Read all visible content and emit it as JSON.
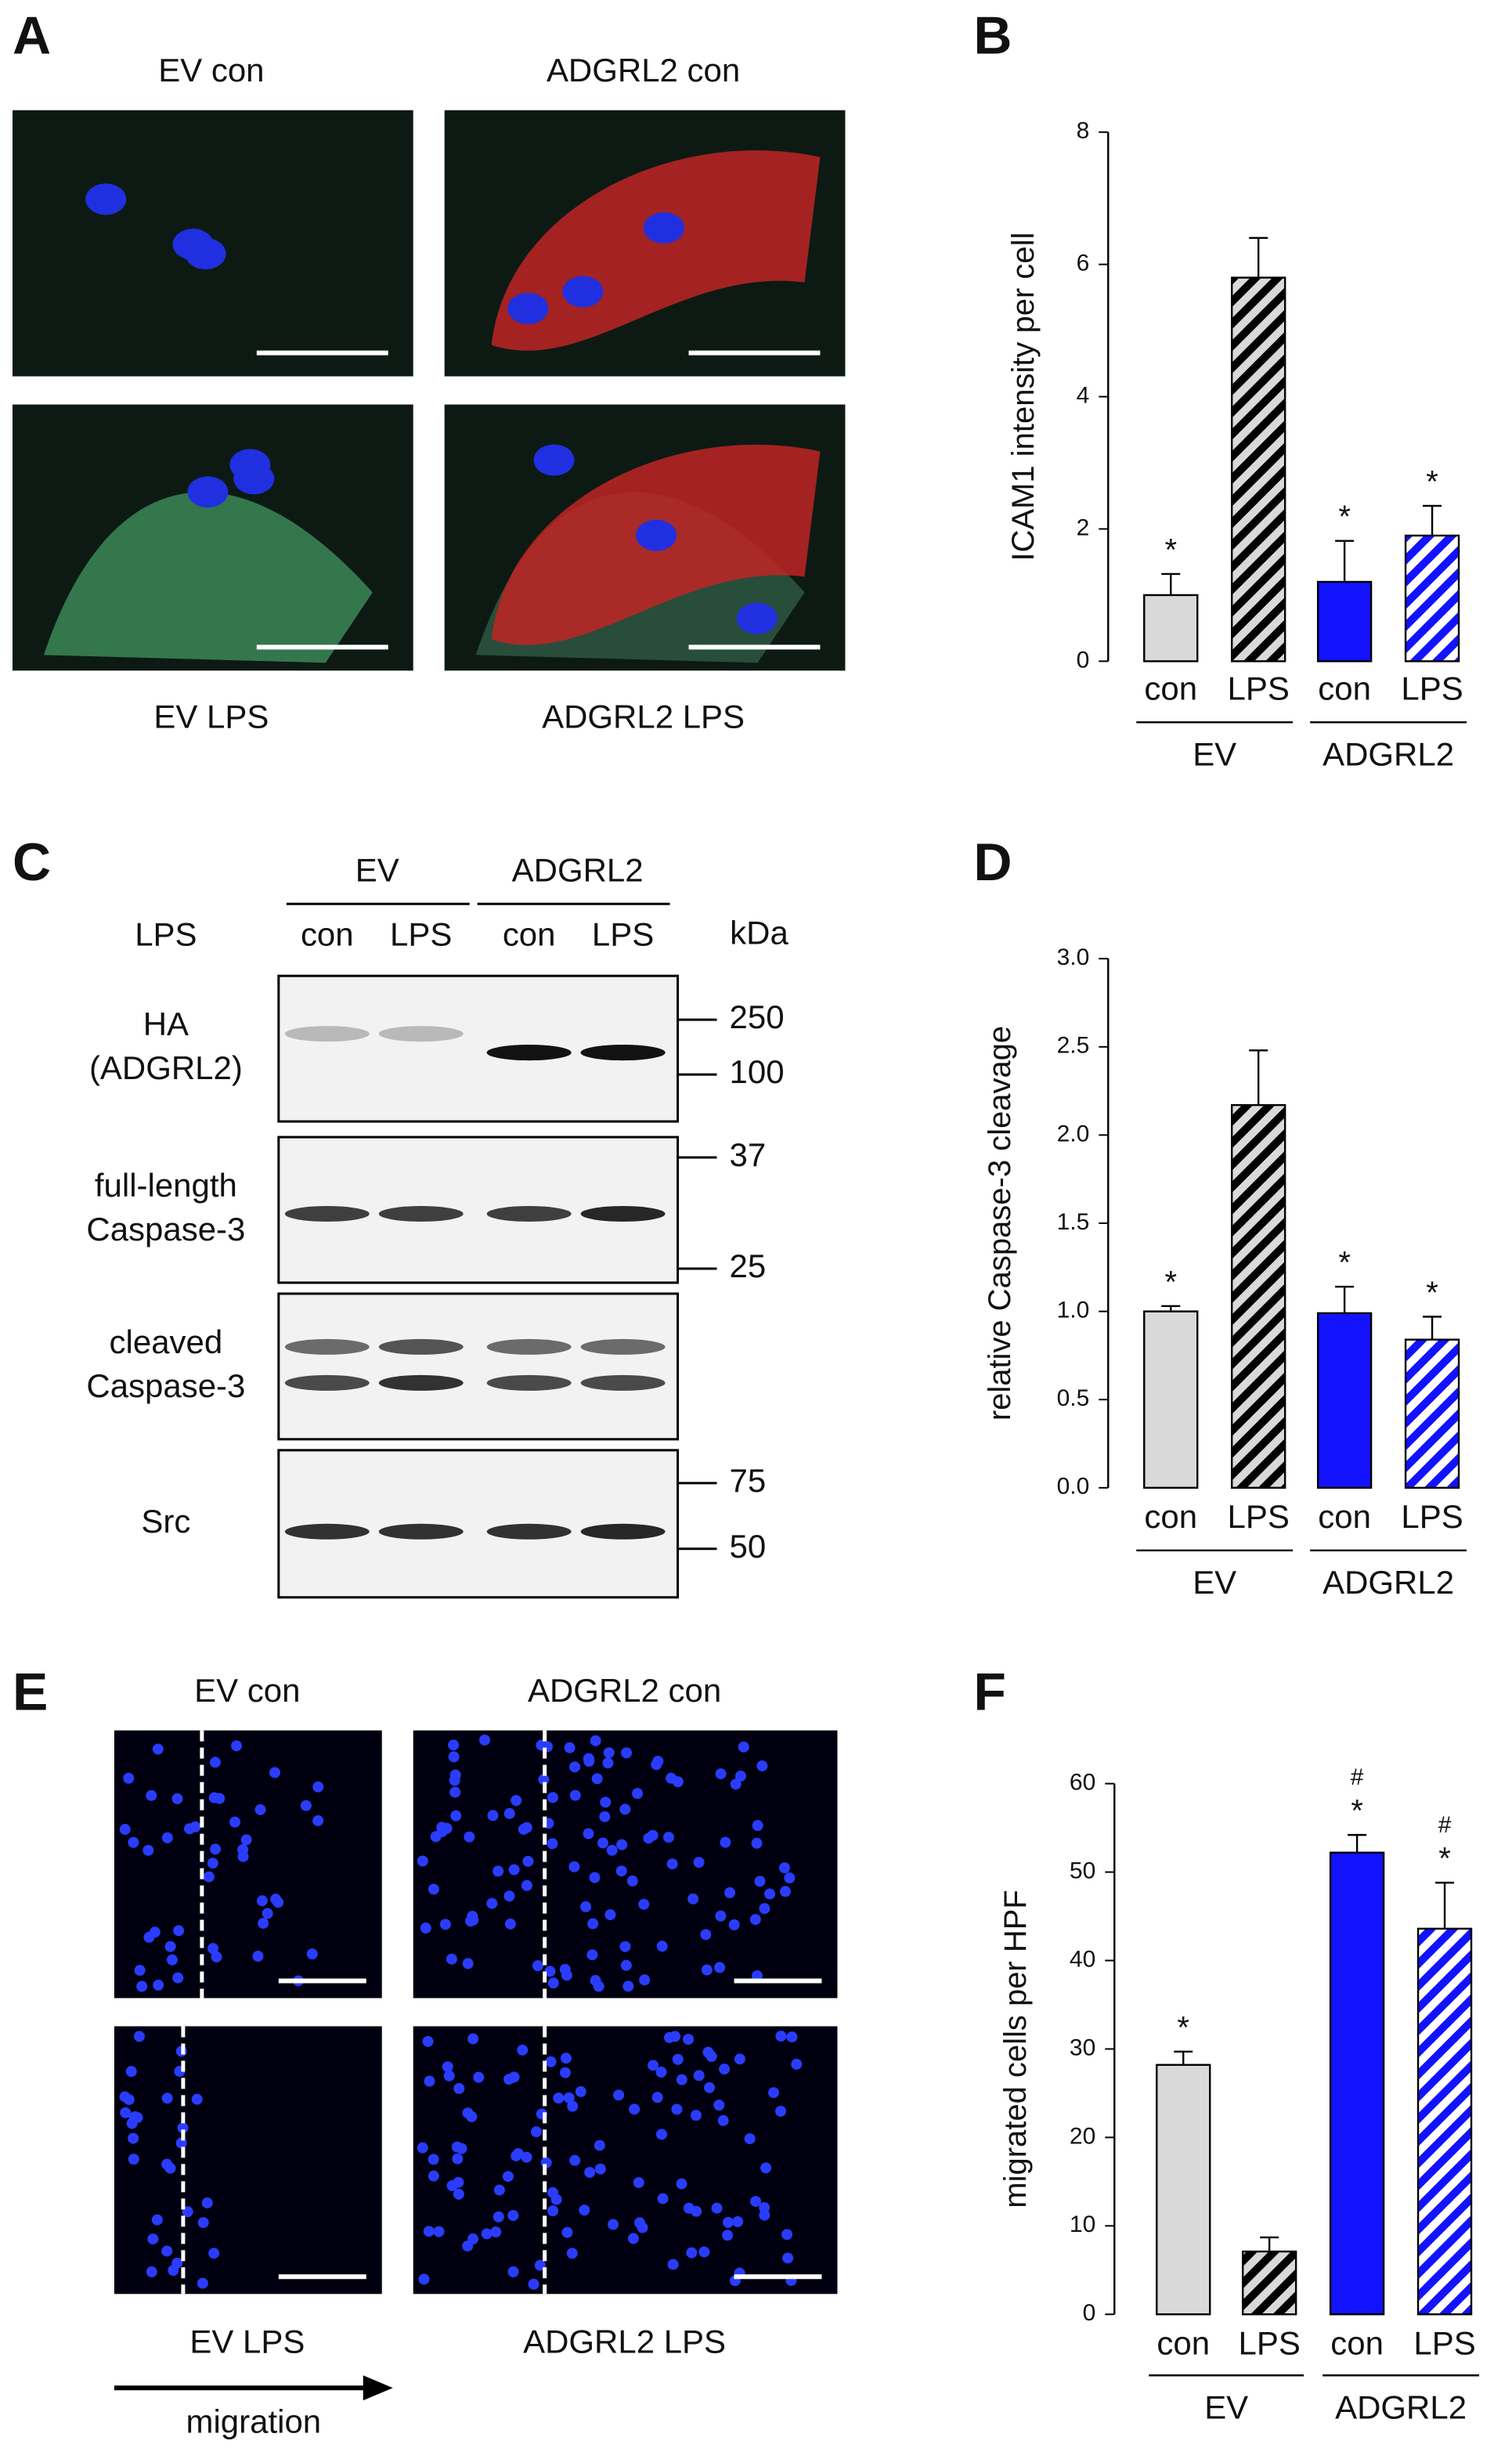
{
  "panel_labels": [
    "A",
    "B",
    "C",
    "D",
    "E",
    "F"
  ],
  "panel_a": {
    "images": [
      "EV con",
      "ADGRL2 con",
      "EV LPS",
      "ADGRL2 LPS"
    ]
  },
  "panel_c": {
    "groups": [
      "EV",
      "ADGRL2"
    ],
    "row_label": "LPS",
    "lanes": [
      "con",
      "LPS",
      "con",
      "LPS"
    ],
    "unit": "kDa",
    "blots": [
      {
        "label": [
          "HA",
          "(ADGRL2)"
        ],
        "markers": [
          250,
          100
        ]
      },
      {
        "label": [
          "full-length",
          "Caspase-3"
        ],
        "markers": [
          37,
          25
        ]
      },
      {
        "label": [
          "cleaved",
          "Caspase-3"
        ]
      },
      {
        "label": [
          "Src"
        ],
        "markers": [
          75,
          50
        ]
      }
    ]
  },
  "panel_e": {
    "images": [
      "EV con",
      "ADGRL2 con",
      "EV LPS",
      "ADGRL2 LPS"
    ],
    "arrow_label": "migration"
  },
  "chart_data": [
    {
      "type": "bar",
      "ylabel": "ICAM1 intensity per cell",
      "categories": [
        "con",
        "LPS",
        "con",
        "LPS"
      ],
      "groups": [
        "EV",
        "ADGRL2"
      ],
      "values": [
        1.0,
        5.8,
        1.2,
        1.9
      ],
      "errors": [
        0.32,
        0.6,
        0.62,
        0.45
      ],
      "significance": [
        "*",
        null,
        "*",
        "*"
      ],
      "colors": [
        "#d9d9d9",
        "#d9d9d9",
        "#1212ff",
        "#1212ff"
      ],
      "hatch_colors": [
        null,
        "#000000",
        null,
        "#ffffff"
      ],
      "ylim": [
        0,
        8
      ],
      "yticks": [
        0,
        2,
        4,
        6,
        8
      ]
    },
    {
      "type": "bar",
      "ylabel": "relative Caspase-3 cleavage",
      "categories": [
        "con",
        "LPS",
        "con",
        "LPS"
      ],
      "groups": [
        "EV",
        "ADGRL2"
      ],
      "values": [
        1.0,
        2.17,
        0.99,
        0.84
      ],
      "errors": [
        0.03,
        0.31,
        0.15,
        0.13
      ],
      "significance": [
        "*",
        null,
        "*",
        "*"
      ],
      "colors": [
        "#d9d9d9",
        "#d9d9d9",
        "#1212ff",
        "#1212ff"
      ],
      "hatch_colors": [
        null,
        "#000000",
        null,
        "#ffffff"
      ],
      "ylim": [
        0,
        3
      ],
      "yticks": [
        {
          "value": 0,
          "label": "0.0"
        },
        {
          "value": 0.5,
          "label": "0.5"
        },
        {
          "value": 1,
          "label": "1.0"
        },
        {
          "value": 1.5,
          "label": "1.5"
        },
        {
          "value": 2,
          "label": "2.0"
        },
        {
          "value": 2.5,
          "label": "2.5"
        },
        {
          "value": 3,
          "label": "3.0"
        }
      ]
    },
    {
      "type": "bar",
      "ylabel": "migrated cells per HPF",
      "categories": [
        "con",
        "LPS",
        "con",
        "LPS"
      ],
      "groups": [
        "EV",
        "ADGRL2"
      ],
      "values": [
        28.2,
        7.1,
        52.2,
        43.6
      ],
      "errors": [
        1.5,
        1.6,
        2.0,
        5.2
      ],
      "significance": [
        "*",
        null,
        "*",
        "*"
      ],
      "hash": [
        null,
        null,
        "#",
        "#"
      ],
      "colors": [
        "#d9d9d9",
        "#d9d9d9",
        "#1212ff",
        "#1212ff"
      ],
      "hatch_colors": [
        null,
        "#000000",
        null,
        "#ffffff"
      ],
      "ylim": [
        0,
        60
      ],
      "yticks": [
        0,
        10,
        20,
        30,
        40,
        50,
        60
      ]
    }
  ]
}
